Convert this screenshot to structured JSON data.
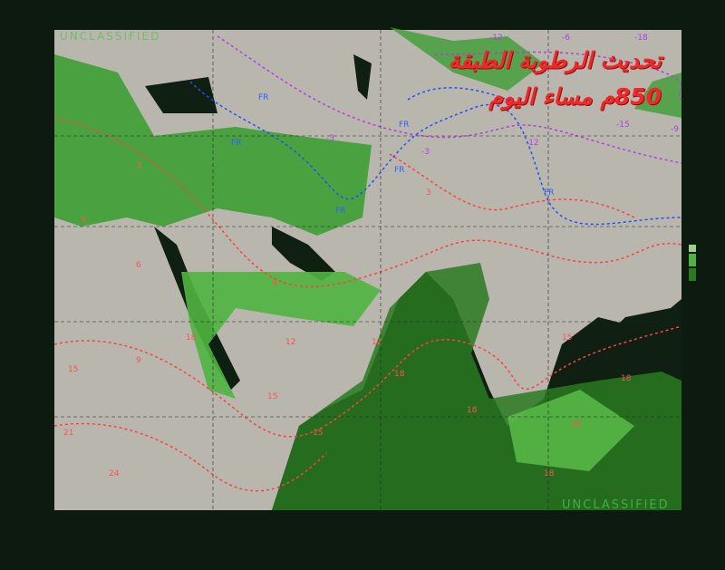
{
  "map": {
    "classification_top": "UNCLASSIFIED",
    "classification_bottom": "UNCLASSIFIED",
    "title_line1": "تحديث الرطوبة الطبقة",
    "title_line2": "850م مساء اليوم",
    "colors": {
      "background": "#0c1a0f",
      "land": "#b9b6ae",
      "water": "#0f1f12",
      "moisture_light": "#5cc24a",
      "moisture_dark": "#2a7a22",
      "temp_positive_contours": "#ff4040",
      "freezing_line": "#2050ff",
      "temp_negative_contours": "#b040e0",
      "title": "#f0282a"
    },
    "contour_labels_positive": [
      "3",
      "3",
      "6",
      "6",
      "9",
      "9",
      "12",
      "12",
      "15",
      "15",
      "15",
      "15",
      "18",
      "18",
      "18",
      "18",
      "18",
      "18",
      "21",
      "24"
    ],
    "contour_labels_freezing": [
      "FR",
      "FR",
      "FR",
      "FR",
      "FR",
      "FR"
    ],
    "contour_labels_negative": [
      "-3",
      "-3",
      "-6",
      "-9",
      "-12",
      "-12",
      "-15",
      "-18"
    ]
  }
}
